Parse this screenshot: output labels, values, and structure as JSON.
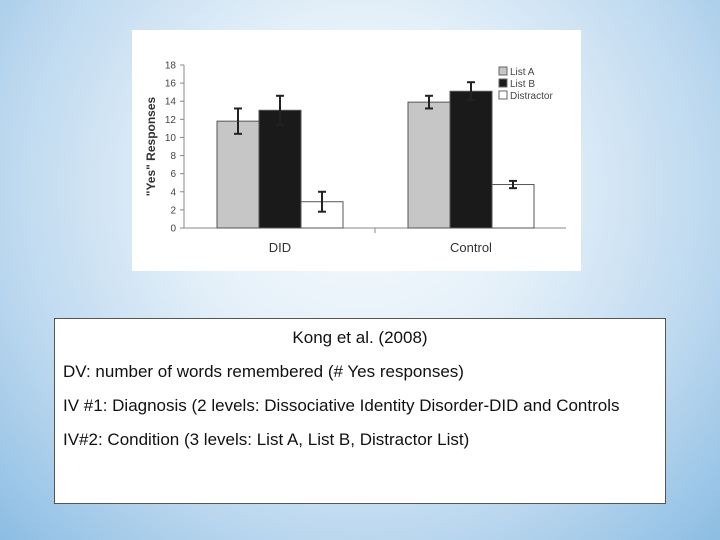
{
  "chart_data": {
    "type": "bar",
    "title": "",
    "xlabel": "",
    "ylabel": "\"Yes\" Responses",
    "ylim": [
      0,
      18
    ],
    "yticks": [
      0,
      2,
      4,
      6,
      8,
      10,
      12,
      14,
      16,
      18
    ],
    "categories": [
      "DID",
      "Control"
    ],
    "legend_position": "top-right",
    "grid": false,
    "series": [
      {
        "name": "List A",
        "values": [
          11.8,
          13.9
        ],
        "errors": [
          1.4,
          0.7
        ],
        "color": "#c6c6c6"
      },
      {
        "name": "List B",
        "values": [
          13.0,
          15.1
        ],
        "errors": [
          1.6,
          1.0
        ],
        "color": "#1a1a1a"
      },
      {
        "name": "Distractor",
        "values": [
          2.9,
          4.8
        ],
        "errors": [
          1.1,
          0.4
        ],
        "color": "#ffffff"
      }
    ]
  },
  "text_box": {
    "title": "Kong et al. (2008)",
    "dv": "DV: number of words remembered (# Yes responses)",
    "iv1": "IV #1: Diagnosis (2 levels: Dissociative Identity Disorder-DID and Controls",
    "iv2": "IV#2: Condition (3 levels: List A, List B, Distractor List)"
  }
}
